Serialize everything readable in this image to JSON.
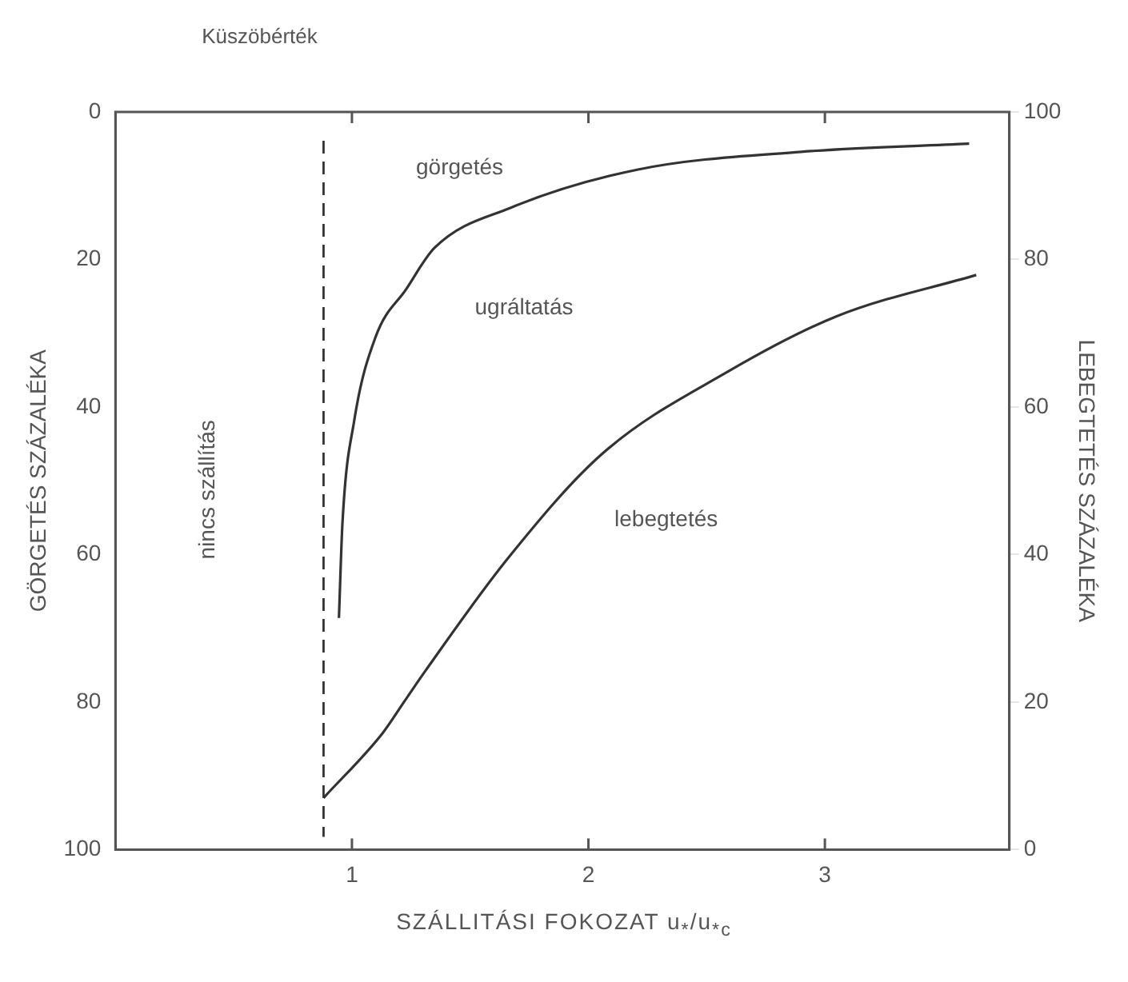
{
  "chart_data": {
    "type": "line",
    "xlabel": "SZÁLLITÁSI FOKOZAT u$_{*}$/u$_{*c}$",
    "ylabel": "GÖRGETÉS SZÁZALÉKA",
    "y2label": "LEBEGTETÉS SZÁZALÉKA",
    "xlim": [
      0,
      3.78
    ],
    "xticks": [
      1,
      2,
      3
    ],
    "ylim": [
      100,
      0
    ],
    "yticks": [
      0,
      20,
      40,
      60,
      80,
      100
    ],
    "y2lim": [
      0,
      100
    ],
    "y2ticks": [
      0,
      20,
      40,
      60,
      80,
      100
    ],
    "grid": false,
    "marker": "none",
    "line_style": "solid",
    "series": [
      {
        "color": "#333333",
        "x": [
          0.945,
          0.96,
          1.01,
          1.1,
          1.23,
          1.35,
          1.67,
          2.21,
          2.9,
          3.61
        ],
        "values": [
          68.6,
          55.7,
          41.8,
          30.5,
          24,
          18.4,
          13,
          7.8,
          5.4,
          4.3
        ]
      },
      {
        "color": "#333333",
        "axis": "y2",
        "x": [
          0.88,
          1.13,
          1.22,
          1.31,
          1.66,
          2.06,
          2.59,
          3.05,
          3.64
        ],
        "values": [
          7,
          15.8,
          20,
          24.2,
          39.5,
          53.7,
          64.8,
          72.3,
          77.9
        ]
      }
    ],
    "ref_lines": [
      {
        "axis": "x",
        "value": 0.88,
        "label": "Küszöbérték",
        "line_style": "dashed",
        "color": "#333333"
      }
    ],
    "annotations": [
      "görgetés",
      "ugráltatás",
      "lebegtetés",
      "nincs szállítás"
    ]
  }
}
